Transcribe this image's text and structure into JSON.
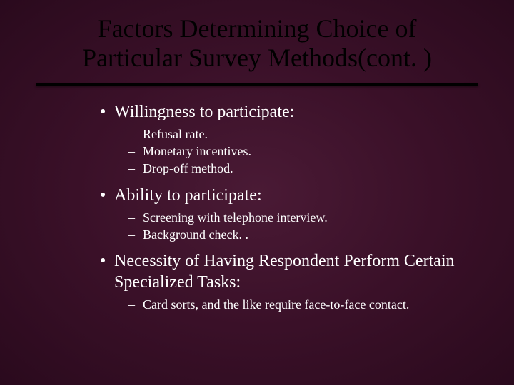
{
  "slide": {
    "title": "Factors Determining Choice of Particular Survey Methods(cont. )",
    "title_color": "#000000",
    "text_color": "#ffffff",
    "background_gradient": {
      "inner": "#4a1a35",
      "mid": "#3a1028",
      "outer": "#2a0a1d"
    },
    "underline_color": "#000000",
    "title_fontsize": 36,
    "bullet_l1_fontsize": 24,
    "bullet_l2_fontsize": 18,
    "groups": [
      {
        "heading": "Willingness to participate:",
        "items": [
          "Refusal rate.",
          "Monetary incentives.",
          "Drop-off method."
        ]
      },
      {
        "heading": "Ability to participate:",
        "items": [
          "Screening with telephone interview.",
          "Background check. ."
        ]
      },
      {
        "heading": "Necessity of Having Respondent Perform Certain Specialized Tasks:",
        "items": [
          "Card sorts, and the like require face-to-face contact."
        ]
      }
    ]
  }
}
